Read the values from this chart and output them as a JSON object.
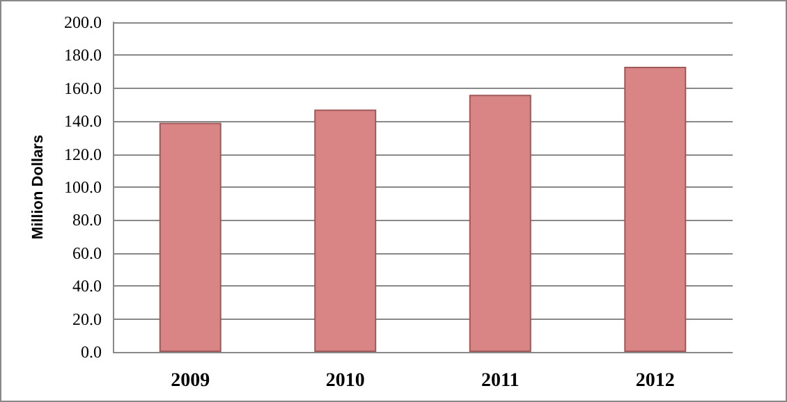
{
  "chart_data": {
    "type": "bar",
    "ylabel": "Million Dollars",
    "categories": [
      "2009",
      "2010",
      "2011",
      "2012"
    ],
    "values": [
      139,
      147,
      156,
      173
    ],
    "color": "#d98585",
    "ylim": [
      0,
      200
    ],
    "yticks": [
      {
        "value": 0,
        "label": "0.0"
      },
      {
        "value": 20,
        "label": "20.0"
      },
      {
        "value": 40,
        "label": "40.0"
      },
      {
        "value": 60,
        "label": "60.0"
      },
      {
        "value": 80,
        "label": "80.0"
      },
      {
        "value": 100,
        "label": "100.0"
      },
      {
        "value": 120,
        "label": "120.0"
      },
      {
        "value": 140,
        "label": "140.0"
      },
      {
        "value": 160,
        "label": "160.0"
      },
      {
        "value": 180,
        "label": "180.0"
      },
      {
        "value": 200,
        "label": "200.0"
      }
    ],
    "grid": "y"
  }
}
